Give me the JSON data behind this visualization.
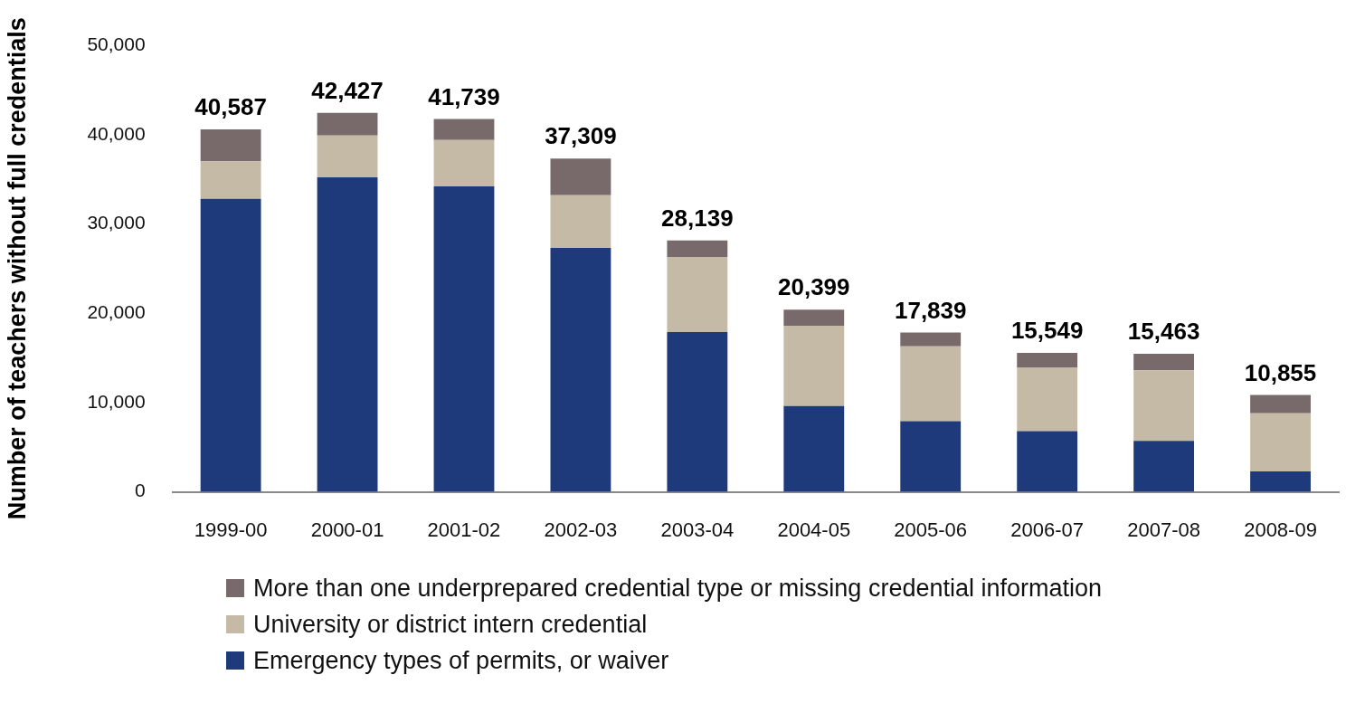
{
  "chart_data": {
    "type": "bar",
    "stacked": true,
    "ylabel": "Number of teachers without full credentials",
    "categories": [
      "1999-00",
      "2000-01",
      "2001-02",
      "2002-03",
      "2003-04",
      "2004-05",
      "2005-06",
      "2006-07",
      "2007-08",
      "2008-09"
    ],
    "series": [
      {
        "name": "Emergency types of permits, or waiver",
        "color": "#1f3a7a",
        "values": [
          32800,
          35200,
          34200,
          27300,
          17900,
          9600,
          7900,
          6800,
          5700,
          2300
        ]
      },
      {
        "name": "University or district intern credential",
        "color": "#c4baa6",
        "values": [
          4200,
          4700,
          5200,
          5900,
          8400,
          9000,
          8400,
          7100,
          7900,
          6500
        ]
      },
      {
        "name": "More than one underprepared credential type or missing credential information",
        "color": "#786a6a",
        "values": [
          3587,
          2527,
          2339,
          4109,
          1839,
          1799,
          1539,
          1649,
          1863,
          2055
        ]
      }
    ],
    "totals": [
      "40,587",
      "42,427",
      "41,739",
      "37,309",
      "28,139",
      "20,399",
      "17,839",
      "15,549",
      "15,463",
      "10,855"
    ],
    "ylim": [
      0,
      50000
    ],
    "yticks": [
      0,
      {
        "value": 10000,
        "label": "10,000"
      },
      {
        "value": 20000,
        "label": "20,000"
      },
      {
        "value": 30000,
        "label": "30,000"
      },
      {
        "value": 40000,
        "label": "40,000"
      },
      {
        "value": 50000,
        "label": "50,000"
      }
    ],
    "grid": false,
    "legend": "bottom"
  }
}
